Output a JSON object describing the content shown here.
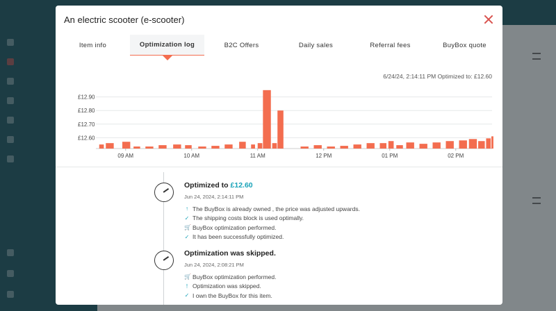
{
  "modal": {
    "title": "An electric scooter (e-scooter)",
    "tabs": [
      {
        "label": "Item info"
      },
      {
        "label": "Optimization log"
      },
      {
        "label": "B2C Offers"
      },
      {
        "label": "Daily sales"
      },
      {
        "label": "Referral fees"
      },
      {
        "label": "BuyBox quote"
      }
    ],
    "active_tab": "Optimization log",
    "chart_header": "6/24/24, 2:14:11 PM Optimized to: £12.60"
  },
  "chart_data": {
    "type": "bar",
    "color": "#f36d4f",
    "y_tick_labels": [
      "£12.60",
      "£12.70",
      "£12.80",
      "£12.90"
    ],
    "y_ticks": [
      12.6,
      12.7,
      12.8,
      12.9
    ],
    "ylim": [
      12.52,
      12.99
    ],
    "x_tick_labels": [
      "09 AM",
      "10 AM",
      "11 AM",
      "12 PM",
      "01 PM",
      "02 PM"
    ],
    "x_ticks": [
      9.0,
      10.0,
      11.0,
      12.0,
      13.0,
      14.0
    ],
    "xlim": [
      8.55,
      14.55
    ],
    "bars": [
      {
        "t": 8.6,
        "w": 0.07,
        "v": 12.55
      },
      {
        "t": 8.7,
        "w": 0.12,
        "v": 12.56
      },
      {
        "t": 8.95,
        "w": 0.12,
        "v": 12.57
      },
      {
        "t": 9.12,
        "w": 0.1,
        "v": 12.535
      },
      {
        "t": 9.3,
        "w": 0.12,
        "v": 12.535
      },
      {
        "t": 9.5,
        "w": 0.12,
        "v": 12.545
      },
      {
        "t": 9.72,
        "w": 0.12,
        "v": 12.55
      },
      {
        "t": 9.9,
        "w": 0.1,
        "v": 12.545
      },
      {
        "t": 10.1,
        "w": 0.12,
        "v": 12.535
      },
      {
        "t": 10.3,
        "w": 0.12,
        "v": 12.54
      },
      {
        "t": 10.5,
        "w": 0.12,
        "v": 12.55
      },
      {
        "t": 10.72,
        "w": 0.1,
        "v": 12.57
      },
      {
        "t": 10.9,
        "w": 0.06,
        "v": 12.55
      },
      {
        "t": 11.0,
        "w": 0.07,
        "v": 12.56
      },
      {
        "t": 11.08,
        "w": 0.12,
        "v": 12.95
      },
      {
        "t": 11.22,
        "w": 0.07,
        "v": 12.56
      },
      {
        "t": 11.3,
        "w": 0.09,
        "v": 12.8
      },
      {
        "t": 11.65,
        "w": 0.12,
        "v": 12.535
      },
      {
        "t": 11.85,
        "w": 0.12,
        "v": 12.545
      },
      {
        "t": 12.05,
        "w": 0.12,
        "v": 12.535
      },
      {
        "t": 12.25,
        "w": 0.12,
        "v": 12.54
      },
      {
        "t": 12.45,
        "w": 0.12,
        "v": 12.55
      },
      {
        "t": 12.65,
        "w": 0.12,
        "v": 12.56
      },
      {
        "t": 12.85,
        "w": 0.1,
        "v": 12.56
      },
      {
        "t": 12.98,
        "w": 0.08,
        "v": 12.575
      },
      {
        "t": 13.1,
        "w": 0.1,
        "v": 12.545
      },
      {
        "t": 13.25,
        "w": 0.12,
        "v": 12.565
      },
      {
        "t": 13.45,
        "w": 0.12,
        "v": 12.555
      },
      {
        "t": 13.65,
        "w": 0.12,
        "v": 12.565
      },
      {
        "t": 13.85,
        "w": 0.12,
        "v": 12.575
      },
      {
        "t": 14.05,
        "w": 0.12,
        "v": 12.58
      },
      {
        "t": 14.2,
        "w": 0.12,
        "v": 12.59
      },
      {
        "t": 14.34,
        "w": 0.1,
        "v": 12.575
      },
      {
        "t": 14.46,
        "w": 0.07,
        "v": 12.595
      },
      {
        "t": 14.54,
        "w": 0.03,
        "v": 12.61
      }
    ]
  },
  "log": [
    {
      "title_prefix": "Optimized to",
      "title_price": "£12.60",
      "time": "Jun 24, 2024, 2:14:11 PM",
      "lines": [
        {
          "icon": "↑",
          "icon_name": "arrow-up-icon",
          "text": "The BuyBox is already owned , the price was adjusted upwards."
        },
        {
          "icon": "✓",
          "icon_name": "check-icon",
          "text": "The shipping costs block is used optimally."
        },
        {
          "icon": "🛒",
          "icon_name": "cart-icon",
          "text": "BuyBox optimization performed."
        },
        {
          "icon": "✓",
          "icon_name": "check-icon",
          "text": "It has been successfully optimized."
        }
      ]
    },
    {
      "title_prefix": "Optimization was skipped.",
      "title_price": "",
      "time": "Jun 24, 2024, 2:08:21 PM",
      "lines": [
        {
          "icon": "🛒",
          "icon_name": "cart-icon",
          "text": "BuyBox optimization performed."
        },
        {
          "icon": "!",
          "icon_name": "exclamation-icon",
          "text": "Optimization was skipped."
        },
        {
          "icon": "✓",
          "icon_name": "check-icon",
          "text": "I own the BuyBox for this item."
        }
      ]
    }
  ]
}
